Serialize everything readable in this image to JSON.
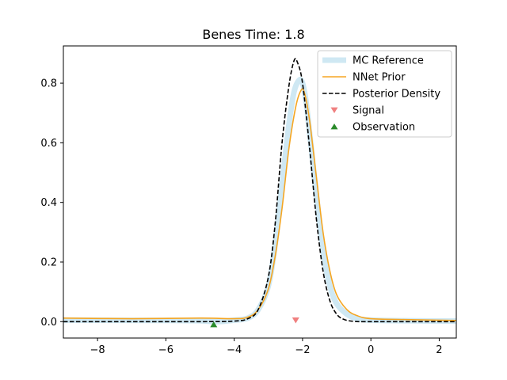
{
  "chart_data": {
    "type": "line",
    "title": "Benes Time: 1.8",
    "xlabel": "",
    "ylabel": "",
    "xlim": [
      -9.0,
      2.5
    ],
    "ylim": [
      -0.055,
      0.925
    ],
    "x_ticks": [
      -8,
      -6,
      -4,
      -2,
      0,
      2
    ],
    "x_tick_labels": [
      "−8",
      "−6",
      "−4",
      "−2",
      "0",
      "2"
    ],
    "y_ticks": [
      0.0,
      0.2,
      0.4,
      0.6,
      0.8
    ],
    "y_tick_labels": [
      "0.0",
      "0.2",
      "0.4",
      "0.6",
      "0.8"
    ],
    "grid": false,
    "legend_position": "top-right",
    "series": [
      {
        "name": "MC Reference",
        "style": "thick-line",
        "color": "#cfe8f3",
        "points": [
          [
            -9.0,
            0.005
          ],
          [
            -6.0,
            0.004
          ],
          [
            -5.0,
            0.003
          ],
          [
            -4.5,
            0.0
          ],
          [
            -4.0,
            0.005
          ],
          [
            -3.6,
            0.012
          ],
          [
            -3.3,
            0.04
          ],
          [
            -3.0,
            0.12
          ],
          [
            -2.8,
            0.26
          ],
          [
            -2.6,
            0.46
          ],
          [
            -2.4,
            0.66
          ],
          [
            -2.25,
            0.77
          ],
          [
            -2.1,
            0.81
          ],
          [
            -2.0,
            0.8
          ],
          [
            -1.9,
            0.74
          ],
          [
            -1.8,
            0.64
          ],
          [
            -1.6,
            0.43
          ],
          [
            -1.4,
            0.24
          ],
          [
            -1.2,
            0.12
          ],
          [
            -1.0,
            0.06
          ],
          [
            -0.7,
            0.025
          ],
          [
            -0.4,
            0.01
          ],
          [
            0.0,
            0.005
          ],
          [
            1.0,
            0.003
          ],
          [
            2.5,
            0.002
          ]
        ]
      },
      {
        "name": "NNet Prior",
        "style": "line",
        "color": "#f5a623",
        "points": [
          [
            -9.0,
            0.012
          ],
          [
            -7.0,
            0.01
          ],
          [
            -5.0,
            0.012
          ],
          [
            -4.0,
            0.01
          ],
          [
            -3.6,
            0.015
          ],
          [
            -3.3,
            0.04
          ],
          [
            -3.0,
            0.11
          ],
          [
            -2.8,
            0.22
          ],
          [
            -2.6,
            0.38
          ],
          [
            -2.4,
            0.58
          ],
          [
            -2.2,
            0.72
          ],
          [
            -2.05,
            0.775
          ],
          [
            -1.95,
            0.77
          ],
          [
            -1.8,
            0.68
          ],
          [
            -1.6,
            0.49
          ],
          [
            -1.4,
            0.3
          ],
          [
            -1.2,
            0.17
          ],
          [
            -1.0,
            0.09
          ],
          [
            -0.7,
            0.04
          ],
          [
            -0.4,
            0.02
          ],
          [
            0.0,
            0.01
          ],
          [
            1.0,
            0.007
          ],
          [
            2.5,
            0.004
          ]
        ]
      },
      {
        "name": "Posterior Density",
        "style": "dashed",
        "color": "#000000",
        "points": [
          [
            -9.0,
            0.0
          ],
          [
            -5.0,
            0.0
          ],
          [
            -4.0,
            0.002
          ],
          [
            -3.6,
            0.01
          ],
          [
            -3.3,
            0.04
          ],
          [
            -3.0,
            0.15
          ],
          [
            -2.8,
            0.33
          ],
          [
            -2.6,
            0.6
          ],
          [
            -2.4,
            0.79
          ],
          [
            -2.25,
            0.875
          ],
          [
            -2.15,
            0.87
          ],
          [
            -2.0,
            0.8
          ],
          [
            -1.8,
            0.59
          ],
          [
            -1.6,
            0.35
          ],
          [
            -1.4,
            0.17
          ],
          [
            -1.2,
            0.07
          ],
          [
            -1.0,
            0.025
          ],
          [
            -0.8,
            0.008
          ],
          [
            -0.5,
            0.001
          ],
          [
            0.0,
            0.0
          ],
          [
            2.5,
            0.0
          ]
        ]
      },
      {
        "name": "Signal",
        "style": "marker-triangle-down",
        "color": "#f08080",
        "points": [
          [
            -2.2,
            0.005
          ]
        ]
      },
      {
        "name": "Observation",
        "style": "marker-triangle-up",
        "color": "#2a8a2a",
        "points": [
          [
            -4.6,
            -0.01
          ]
        ]
      }
    ]
  }
}
